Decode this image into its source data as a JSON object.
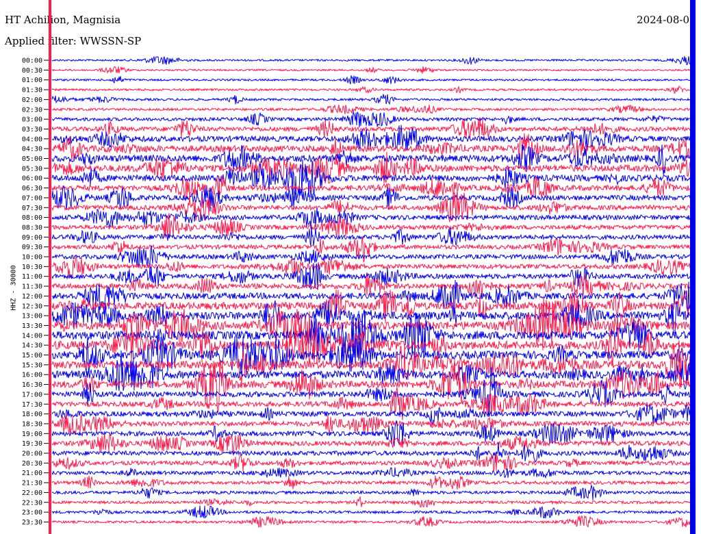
{
  "header": {
    "station": "HT Achilion, Magnisia",
    "filter": "Applied filter: WWSSN-SP",
    "date": "2024-08-0"
  },
  "channel_label": "HHZ - 30000",
  "colors": {
    "trace_a": "#0000ee",
    "trace_b": "#ff1a4a",
    "axis": "#000000",
    "background": "#ffffff"
  },
  "chart_data": {
    "type": "line",
    "description_kind": "helicorder",
    "ylabel": "HHZ - 30000",
    "row_labels": [
      "00:00",
      "00:30",
      "01:00",
      "01:30",
      "02:00",
      "02:30",
      "03:00",
      "03:30",
      "04:00",
      "04:30",
      "05:00",
      "05:30",
      "06:00",
      "06:30",
      "07:00",
      "07:30",
      "08:00",
      "08:30",
      "09:00",
      "09:30",
      "10:00",
      "10:30",
      "11:00",
      "11:30",
      "12:00",
      "12:30",
      "13:00",
      "13:30",
      "14:00",
      "14:30",
      "15:00",
      "15:30",
      "16:00",
      "16:30",
      "17:00",
      "17:30",
      "18:00",
      "18:30",
      "19:00",
      "19:30",
      "20:00",
      "20:30",
      "21:00",
      "21:30",
      "22:00",
      "22:30",
      "23:00",
      "23:30"
    ],
    "row_colors": [
      "trace_a",
      "trace_b"
    ],
    "activity_level": [
      0.6,
      0.5,
      0.6,
      0.7,
      0.8,
      0.9,
      1.4,
      2.0,
      2.6,
      3.0,
      3.4,
      3.2,
      3.0,
      2.6,
      2.4,
      2.2,
      2.2,
      2.0,
      2.0,
      1.9,
      2.0,
      2.1,
      2.3,
      2.5,
      3.0,
      3.6,
      4.0,
      4.2,
      4.2,
      4.2,
      4.0,
      4.0,
      3.8,
      3.4,
      2.6,
      2.4,
      2.4,
      2.3,
      2.2,
      2.2,
      2.0,
      1.8,
      1.6,
      1.4,
      1.2,
      1.1,
      1.0,
      0.9
    ],
    "grid": false
  }
}
